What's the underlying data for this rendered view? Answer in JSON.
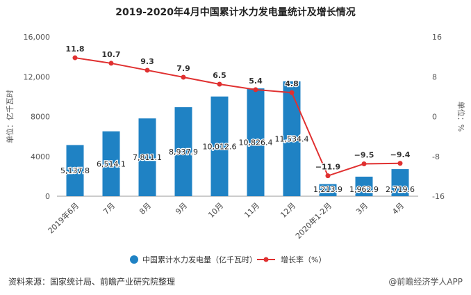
{
  "chart_data": {
    "type": "bar+line",
    "title": "2019-2020年4月中国累计水力发电量统计及增长情况",
    "categories": [
      "2019年6月",
      "7月",
      "8月",
      "9月",
      "10月",
      "11月",
      "12月",
      "2020年1-2月",
      "3月",
      "4月"
    ],
    "series": [
      {
        "name": "中国累计水力发电量（亿千瓦时）",
        "type": "bar",
        "axis": "left",
        "values": [
          5137.8,
          6514.1,
          7811.1,
          8937.9,
          10012.6,
          10826.4,
          11534.4,
          1213.9,
          1962.9,
          2719.6
        ],
        "labels": [
          "5,137.8",
          "6,514.1",
          "7,811.1",
          "8,937.9",
          "10,012.6",
          "10,826.4",
          "11,534.4",
          "1,213.9",
          "1,962.9",
          "2,719.6"
        ],
        "color": "#1f82c4"
      },
      {
        "name": "增长率（%）",
        "type": "line",
        "axis": "right",
        "values": [
          11.8,
          10.7,
          9.3,
          7.9,
          6.5,
          5.4,
          4.8,
          -11.9,
          -9.5,
          -9.4
        ],
        "labels": [
          "11.8",
          "10.7",
          "9.3",
          "7.9",
          "6.5",
          "5.4",
          "4.8",
          "−11.9",
          "−9.5",
          "−9.4"
        ],
        "color": "#e03030"
      }
    ],
    "ylabel_left": "单位：亿千瓦时",
    "ylabel_right": "单位：%",
    "ylim_left": [
      0,
      16000
    ],
    "yticks_left": [
      "0",
      "4000",
      "8000",
      "12,000",
      "16,000"
    ],
    "ylim_right": [
      -16,
      16
    ],
    "yticks_right": [
      "-16",
      "-8",
      "0",
      "8",
      "16"
    ],
    "grid": false,
    "legend": "bottom"
  },
  "footer": {
    "source": "资料来源：国家统计局、前瞻产业研究院整理",
    "brand": "@前瞻经济学人APP"
  }
}
